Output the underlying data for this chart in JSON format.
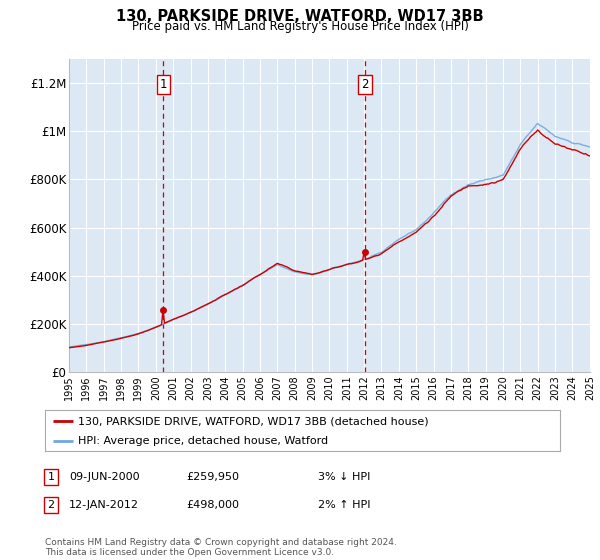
{
  "title": "130, PARKSIDE DRIVE, WATFORD, WD17 3BB",
  "subtitle": "Price paid vs. HM Land Registry's House Price Index (HPI)",
  "background_color": "#ffffff",
  "plot_bg_color": "#dce9f5",
  "grid_color": "#ffffff",
  "ylim": [
    0,
    1300000
  ],
  "yticks": [
    0,
    200000,
    400000,
    600000,
    800000,
    1000000,
    1200000
  ],
  "ytick_labels": [
    "£0",
    "£200K",
    "£400K",
    "£600K",
    "£800K",
    "£1M",
    "£1.2M"
  ],
  "year_start": 1995,
  "year_end": 2025,
  "sale1_date": 2000.44,
  "sale1_price": 259950,
  "sale2_date": 2012.04,
  "sale2_price": 498000,
  "sale1_label": "1",
  "sale2_label": "2",
  "legend_line1": "130, PARKSIDE DRIVE, WATFORD, WD17 3BB (detached house)",
  "legend_line2": "HPI: Average price, detached house, Watford",
  "hpi_color": "#6fa8dc",
  "price_color": "#cc0000",
  "vline_color": "#cc0000",
  "footer": "Contains HM Land Registry data © Crown copyright and database right 2024.\nThis data is licensed under the Open Government Licence v3.0."
}
